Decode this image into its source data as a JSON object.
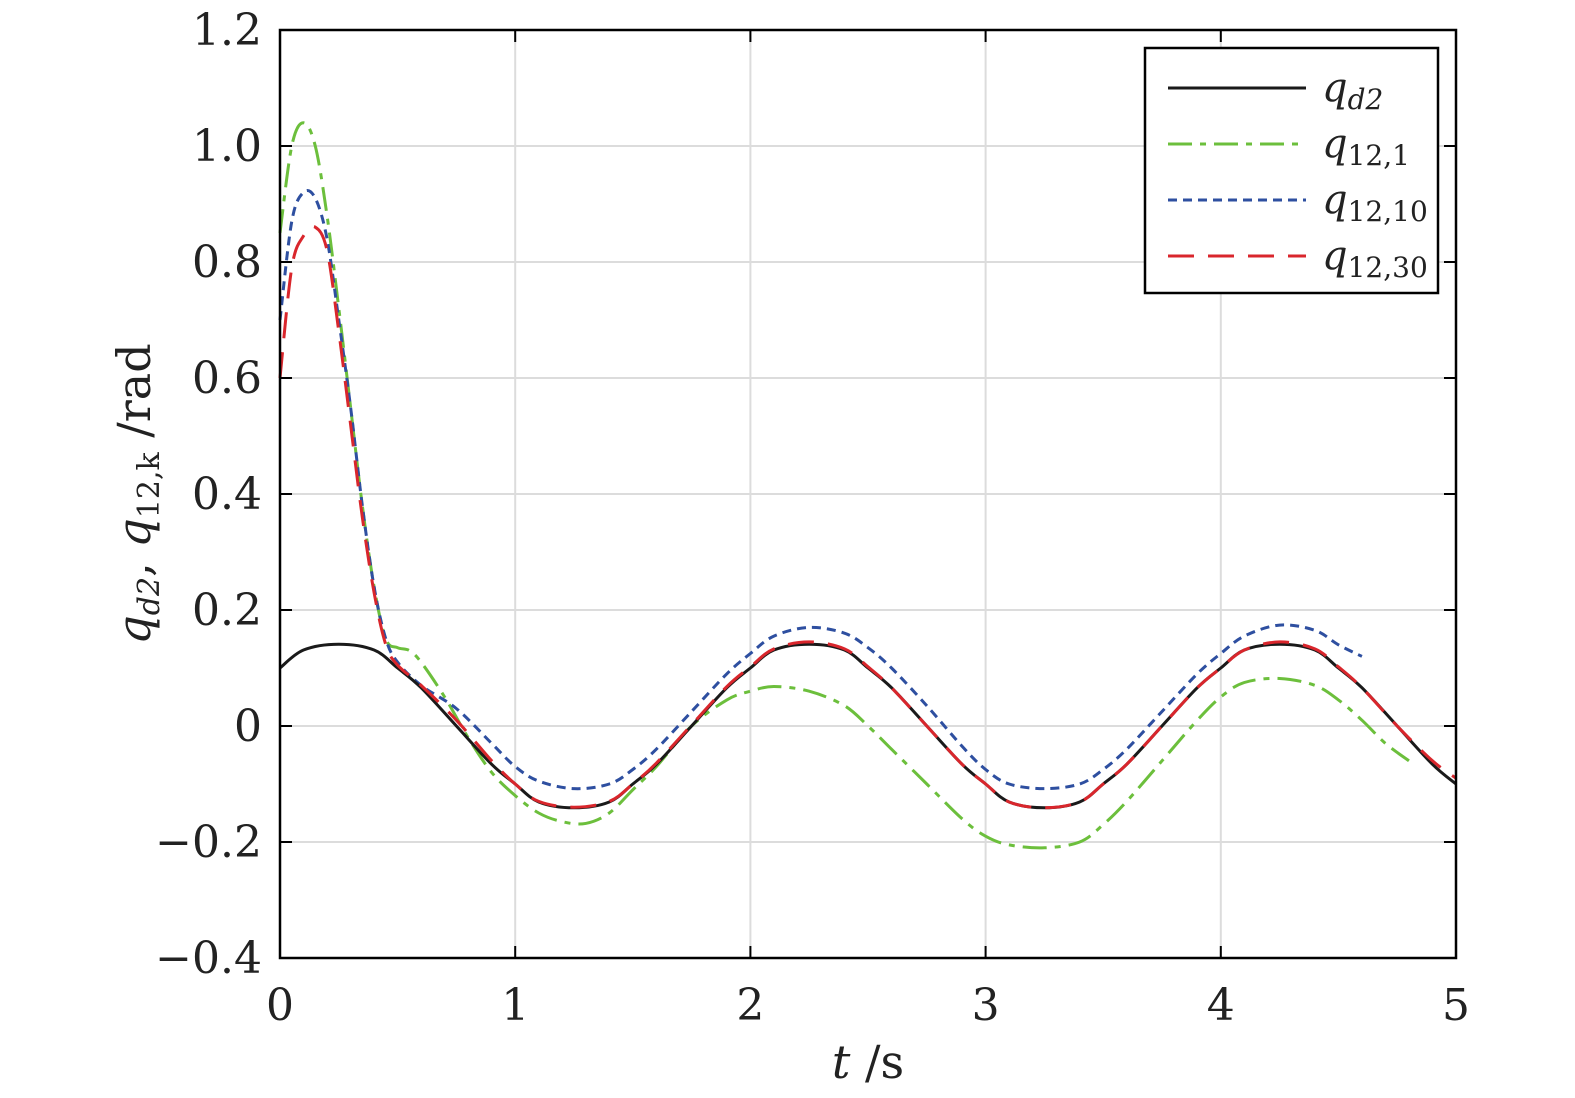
{
  "chart_data": {
    "type": "line",
    "x_label": {
      "main": "t",
      "unit": " /s"
    },
    "y_label": {
      "q1": "q",
      "q1_sub": "d2",
      "sep": ",  ",
      "q2": "q",
      "q2_sub": "12,k",
      "unit": " /rad"
    },
    "xlim": [
      0,
      5
    ],
    "ylim": [
      -0.4,
      1.2
    ],
    "x_ticks": [
      0,
      1,
      2,
      3,
      4,
      5
    ],
    "x_tick_labels": [
      "0",
      "1",
      "2",
      "3",
      "4",
      "5"
    ],
    "y_ticks": [
      -0.4,
      -0.2,
      0,
      0.2,
      0.4,
      0.6,
      0.8,
      1.0,
      1.2
    ],
    "y_tick_labels": [
      "−0.4",
      "−0.2",
      "0",
      "0.2",
      "0.4",
      "0.6",
      "0.8",
      "1.0",
      "1.2"
    ],
    "grid": true,
    "legend_position": "top-right",
    "series": [
      {
        "name": "q",
        "name_sub": "d2",
        "color": "#1a1a1a",
        "dash": "solid",
        "x": [
          0,
          0.1,
          0.25,
          0.4,
          0.5,
          0.6,
          0.75,
          0.9,
          1.0,
          1.1,
          1.25,
          1.4,
          1.5,
          1.6,
          1.75,
          1.9,
          2.0,
          2.1,
          2.25,
          2.4,
          2.5,
          2.6,
          2.75,
          2.9,
          3.0,
          3.1,
          3.25,
          3.4,
          3.5,
          3.6,
          3.75,
          3.9,
          4.0,
          4.1,
          4.25,
          4.4,
          4.5,
          4.6,
          4.75,
          4.9,
          5.0
        ],
        "y": [
          0.1,
          0.131,
          0.141,
          0.131,
          0.1,
          0.066,
          0.0,
          -0.066,
          -0.1,
          -0.131,
          -0.141,
          -0.131,
          -0.1,
          -0.066,
          0.0,
          0.066,
          0.1,
          0.131,
          0.141,
          0.131,
          0.1,
          0.066,
          0.0,
          -0.066,
          -0.1,
          -0.131,
          -0.141,
          -0.131,
          -0.1,
          -0.066,
          0.0,
          0.066,
          0.1,
          0.131,
          0.141,
          0.131,
          0.1,
          0.066,
          0.0,
          -0.066,
          -0.1
        ]
      },
      {
        "name": "q",
        "name_sub": "12,1",
        "color": "#6cbf3c",
        "dash": "long-dash-dot",
        "x": [
          0,
          0.05,
          0.1,
          0.15,
          0.2,
          0.25,
          0.3,
          0.35,
          0.4,
          0.45,
          0.5,
          0.55,
          0.6,
          0.7,
          0.8,
          0.9,
          1.0,
          1.1,
          1.2,
          1.3,
          1.4,
          1.5,
          1.6,
          1.75,
          1.9,
          2.0,
          2.1,
          2.25,
          2.4,
          2.5,
          2.6,
          2.75,
          2.9,
          3.0,
          3.1,
          3.25,
          3.4,
          3.5,
          3.6,
          3.75,
          3.9,
          4.0,
          4.1,
          4.25,
          4.4,
          4.5,
          4.6,
          4.7,
          4.8
        ],
        "y": [
          0.85,
          1.0,
          1.04,
          1.0,
          0.88,
          0.72,
          0.55,
          0.38,
          0.24,
          0.15,
          0.135,
          0.13,
          0.11,
          0.05,
          -0.02,
          -0.08,
          -0.12,
          -0.15,
          -0.165,
          -0.168,
          -0.15,
          -0.11,
          -0.07,
          0.0,
          0.045,
          0.06,
          0.068,
          0.06,
          0.035,
          0.0,
          -0.04,
          -0.1,
          -0.16,
          -0.19,
          -0.205,
          -0.21,
          -0.2,
          -0.17,
          -0.13,
          -0.06,
          0.01,
          0.05,
          0.075,
          0.082,
          0.07,
          0.045,
          0.01,
          -0.03,
          -0.06
        ]
      },
      {
        "name": "q",
        "name_sub": "12,10",
        "color": "#2e4fa0",
        "dash": "short-dash",
        "x": [
          0,
          0.05,
          0.1,
          0.15,
          0.2,
          0.25,
          0.3,
          0.35,
          0.4,
          0.45,
          0.5,
          0.6,
          0.75,
          0.9,
          1.0,
          1.1,
          1.25,
          1.4,
          1.5,
          1.6,
          1.75,
          1.9,
          2.0,
          2.1,
          2.25,
          2.4,
          2.5,
          2.6,
          2.75,
          2.9,
          3.0,
          3.1,
          3.25,
          3.4,
          3.5,
          3.6,
          3.75,
          3.9,
          4.0,
          4.1,
          4.25,
          4.4,
          4.5,
          4.6
        ],
        "y": [
          0.7,
          0.87,
          0.92,
          0.91,
          0.84,
          0.7,
          0.55,
          0.38,
          0.24,
          0.15,
          0.11,
          0.07,
          0.03,
          -0.03,
          -0.07,
          -0.095,
          -0.108,
          -0.1,
          -0.075,
          -0.04,
          0.025,
          0.09,
          0.125,
          0.155,
          0.17,
          0.16,
          0.135,
          0.1,
          0.035,
          -0.035,
          -0.075,
          -0.1,
          -0.108,
          -0.1,
          -0.075,
          -0.04,
          0.025,
          0.09,
          0.125,
          0.155,
          0.174,
          0.165,
          0.14,
          0.12
        ]
      },
      {
        "name": "q",
        "name_sub": "12,30",
        "color": "#d9262c",
        "dash": "long-dash",
        "x": [
          0,
          0.05,
          0.1,
          0.15,
          0.2,
          0.25,
          0.3,
          0.35,
          0.4,
          0.45,
          0.5,
          0.6,
          0.75,
          0.9,
          1.0,
          1.1,
          1.25,
          1.4,
          1.5,
          1.6,
          1.75,
          1.9,
          2.0,
          2.1,
          2.25,
          2.4,
          2.5,
          2.6,
          2.75,
          2.9,
          3.0,
          3.1,
          3.25,
          3.4,
          3.5,
          3.6,
          3.75,
          3.9,
          4.0,
          4.1,
          4.25,
          4.4,
          4.5,
          4.6,
          4.75,
          4.9,
          5.0
        ],
        "y": [
          0.6,
          0.79,
          0.845,
          0.86,
          0.82,
          0.68,
          0.52,
          0.36,
          0.23,
          0.14,
          0.105,
          0.07,
          0.01,
          -0.06,
          -0.1,
          -0.13,
          -0.14,
          -0.13,
          -0.1,
          -0.064,
          0.002,
          0.068,
          0.102,
          0.133,
          0.145,
          0.133,
          0.102,
          0.066,
          0.0,
          -0.066,
          -0.1,
          -0.131,
          -0.141,
          -0.131,
          -0.1,
          -0.066,
          0.0,
          0.066,
          0.1,
          0.131,
          0.145,
          0.133,
          0.102,
          0.066,
          0.0,
          -0.06,
          -0.09
        ]
      }
    ]
  }
}
